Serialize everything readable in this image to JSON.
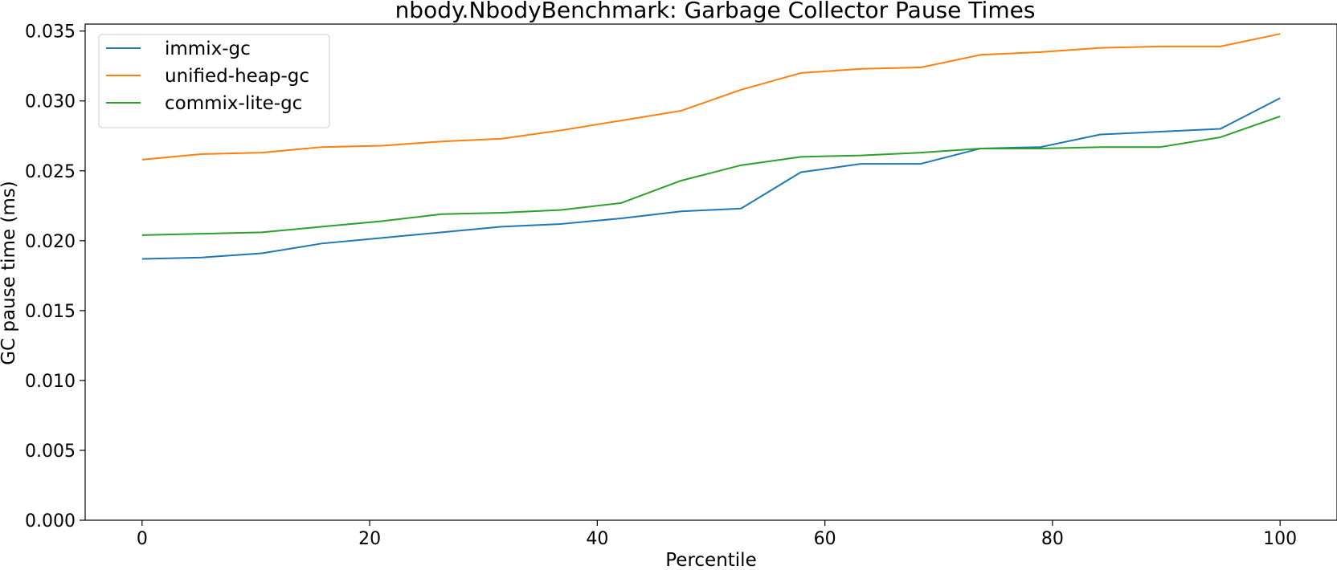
{
  "chart_data": {
    "type": "line",
    "title": "nbody.NbodyBenchmark: Garbage Collector Pause Times",
    "xlabel": "Percentile",
    "ylabel": "GC pause time (ms)",
    "xlim": [
      -5,
      105
    ],
    "ylim": [
      0,
      0.0355
    ],
    "x_ticks": [
      0,
      20,
      40,
      60,
      80,
      100
    ],
    "y_ticks": [
      0.0,
      0.005,
      0.01,
      0.015,
      0.02,
      0.025,
      0.03,
      0.035
    ],
    "x_tick_labels": [
      "0",
      "20",
      "40",
      "60",
      "80",
      "100"
    ],
    "y_tick_labels": [
      "0.000",
      "0.005",
      "0.010",
      "0.015",
      "0.020",
      "0.025",
      "0.030",
      "0.035"
    ],
    "grid": false,
    "legend_position": "upper-left",
    "x": [
      0,
      5.26,
      10.53,
      15.79,
      21.05,
      26.32,
      31.58,
      36.84,
      42.11,
      47.37,
      52.63,
      57.89,
      63.16,
      68.42,
      73.68,
      78.95,
      84.21,
      89.47,
      94.74,
      100
    ],
    "series": [
      {
        "name": "immix-gc",
        "color": "#1f77b4",
        "values": [
          0.0187,
          0.0188,
          0.0191,
          0.0198,
          0.0202,
          0.0206,
          0.021,
          0.0212,
          0.0216,
          0.0221,
          0.0223,
          0.0249,
          0.0255,
          0.0255,
          0.0266,
          0.0267,
          0.0276,
          0.0278,
          0.028,
          0.0302
        ]
      },
      {
        "name": "unified-heap-gc",
        "color": "#ff7f0e",
        "values": [
          0.0258,
          0.0262,
          0.0263,
          0.0267,
          0.0268,
          0.0271,
          0.0273,
          0.0279,
          0.0286,
          0.0293,
          0.0308,
          0.032,
          0.0323,
          0.0324,
          0.0333,
          0.0335,
          0.0338,
          0.0339,
          0.0339,
          0.0348
        ]
      },
      {
        "name": "commix-lite-gc",
        "color": "#2ca02c",
        "values": [
          0.0204,
          0.0205,
          0.0206,
          0.021,
          0.0214,
          0.0219,
          0.022,
          0.0222,
          0.0227,
          0.0243,
          0.0254,
          0.026,
          0.0261,
          0.0263,
          0.0266,
          0.0266,
          0.0267,
          0.0267,
          0.0274,
          0.0289
        ]
      }
    ]
  }
}
